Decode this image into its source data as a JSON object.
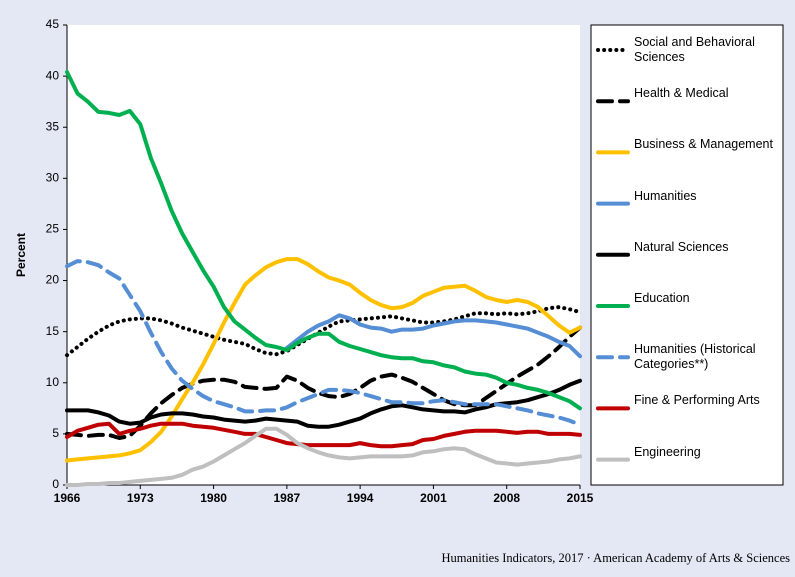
{
  "chart_data": {
    "type": "line",
    "y_label": "Percent",
    "source": "Humanities Indicators, 2017 · American Academy of Arts & Sciences",
    "x": [
      1966,
      1967,
      1968,
      1969,
      1970,
      1971,
      1972,
      1973,
      1974,
      1975,
      1976,
      1977,
      1978,
      1979,
      1980,
      1981,
      1982,
      1983,
      1984,
      1985,
      1986,
      1987,
      1988,
      1989,
      1990,
      1991,
      1992,
      1993,
      1994,
      1995,
      1996,
      1997,
      1998,
      1999,
      2000,
      2001,
      2002,
      2003,
      2004,
      2005,
      2006,
      2007,
      2008,
      2009,
      2010,
      2011,
      2012,
      2013,
      2014,
      2015
    ],
    "xlim": [
      1966,
      2015
    ],
    "xticks": [
      1966,
      1973,
      1980,
      1987,
      1994,
      2001,
      2008,
      2015
    ],
    "ylim": [
      0,
      45
    ],
    "yticks": [
      0,
      5,
      10,
      15,
      20,
      25,
      30,
      35,
      40,
      45
    ],
    "grid": false,
    "series": [
      {
        "name": "Social and Behavioral Sciences",
        "color": "#000000",
        "style": "dotted",
        "values": [
          12.7,
          13.5,
          14.3,
          15.0,
          15.6,
          16.0,
          16.2,
          16.3,
          16.3,
          16.1,
          15.8,
          15.4,
          15.1,
          14.8,
          14.5,
          14.2,
          14.0,
          13.8,
          13.3,
          12.9,
          12.8,
          13.1,
          13.7,
          14.3,
          14.9,
          15.5,
          16.0,
          16.1,
          16.2,
          16.3,
          16.4,
          16.5,
          16.3,
          16.1,
          15.9,
          15.9,
          16.0,
          16.2,
          16.5,
          16.8,
          16.8,
          16.7,
          16.8,
          16.7,
          16.8,
          17.0,
          17.3,
          17.4,
          17.2,
          16.9
        ]
      },
      {
        "name": "Health & Medical",
        "color": "#000000",
        "style": "dashed",
        "values": [
          5.0,
          4.9,
          4.8,
          4.9,
          4.9,
          4.6,
          4.8,
          5.8,
          7.0,
          8.0,
          8.8,
          9.5,
          9.9,
          10.2,
          10.3,
          10.3,
          10.1,
          9.6,
          9.5,
          9.4,
          9.5,
          10.6,
          10.2,
          9.5,
          9.0,
          8.7,
          8.6,
          8.9,
          9.5,
          10.2,
          10.6,
          10.8,
          10.5,
          10.1,
          9.5,
          8.9,
          8.3,
          7.9,
          7.8,
          7.8,
          8.5,
          9.2,
          9.9,
          10.6,
          11.2,
          11.8,
          12.6,
          13.5,
          14.5,
          15.4
        ]
      },
      {
        "name": "Business & Management",
        "color": "#ffc000",
        "style": "solid",
        "values": [
          2.4,
          2.5,
          2.6,
          2.7,
          2.8,
          2.9,
          3.1,
          3.4,
          4.2,
          5.2,
          6.7,
          8.4,
          10.0,
          11.8,
          13.8,
          15.9,
          17.8,
          19.6,
          20.5,
          21.3,
          21.8,
          22.1,
          22.1,
          21.6,
          20.9,
          20.3,
          20.0,
          19.6,
          18.8,
          18.1,
          17.6,
          17.3,
          17.4,
          17.8,
          18.5,
          18.9,
          19.3,
          19.4,
          19.5,
          19.0,
          18.4,
          18.1,
          17.9,
          18.1,
          17.9,
          17.4,
          16.5,
          15.6,
          14.9,
          15.4
        ]
      },
      {
        "name": "Humanities",
        "color": "#558ed5",
        "style": "solid",
        "values": [
          null,
          null,
          null,
          null,
          null,
          null,
          null,
          null,
          null,
          null,
          null,
          null,
          null,
          null,
          null,
          null,
          null,
          null,
          null,
          null,
          null,
          13.4,
          14.2,
          15.0,
          15.6,
          16.0,
          16.6,
          16.3,
          15.7,
          15.4,
          15.3,
          15.0,
          15.2,
          15.2,
          15.3,
          15.6,
          15.8,
          16.0,
          16.1,
          16.1,
          16.0,
          15.9,
          15.7,
          15.5,
          15.3,
          14.9,
          14.5,
          14.0,
          13.6,
          12.6
        ]
      },
      {
        "name": "Natural Sciences",
        "color": "#000000",
        "style": "solid",
        "values": [
          7.3,
          7.3,
          7.3,
          7.1,
          6.8,
          6.2,
          6.0,
          6.1,
          6.6,
          6.9,
          7.0,
          7.0,
          6.9,
          6.7,
          6.6,
          6.4,
          6.3,
          6.2,
          6.3,
          6.5,
          6.4,
          6.3,
          6.2,
          5.8,
          5.7,
          5.7,
          5.9,
          6.2,
          6.5,
          7.0,
          7.4,
          7.7,
          7.8,
          7.6,
          7.4,
          7.3,
          7.2,
          7.2,
          7.1,
          7.4,
          7.6,
          7.9,
          8.0,
          8.1,
          8.3,
          8.6,
          8.9,
          9.3,
          9.8,
          10.2
        ]
      },
      {
        "name": "Education",
        "color": "#00b050",
        "style": "solid",
        "values": [
          40.4,
          38.3,
          37.5,
          36.5,
          36.4,
          36.2,
          36.6,
          35.3,
          32.0,
          29.5,
          26.8,
          24.6,
          22.8,
          21.0,
          19.4,
          17.4,
          16.0,
          15.2,
          14.4,
          13.7,
          13.5,
          13.2,
          13.9,
          14.4,
          14.8,
          14.8,
          14.0,
          13.6,
          13.3,
          13.0,
          12.7,
          12.5,
          12.4,
          12.4,
          12.1,
          12.0,
          11.7,
          11.5,
          11.1,
          10.9,
          10.8,
          10.5,
          10.0,
          9.8,
          9.5,
          9.3,
          9.0,
          8.6,
          8.2,
          7.5
        ]
      },
      {
        "name": "Humanities (Historical Categories**)",
        "color": "#558ed5",
        "style": "dashed",
        "values": [
          21.4,
          21.9,
          21.8,
          21.5,
          20.8,
          20.2,
          18.6,
          17.0,
          14.9,
          13.0,
          11.4,
          10.2,
          9.4,
          8.7,
          8.2,
          7.9,
          7.6,
          7.2,
          7.2,
          7.3,
          7.3,
          7.6,
          8.1,
          8.5,
          8.9,
          9.3,
          9.3,
          9.2,
          9.0,
          8.7,
          8.4,
          8.1,
          8.1,
          8.0,
          8.0,
          8.2,
          8.3,
          8.1,
          7.9,
          7.9,
          7.9,
          7.9,
          7.7,
          7.5,
          7.3,
          7.0,
          6.8,
          6.6,
          6.3,
          5.9
        ]
      },
      {
        "name": "Fine & Performing Arts",
        "color": "#c00000",
        "style": "solid",
        "values": [
          4.7,
          5.3,
          5.6,
          5.9,
          6.0,
          5.0,
          5.3,
          5.5,
          5.8,
          6.0,
          6.0,
          6.0,
          5.8,
          5.7,
          5.6,
          5.4,
          5.2,
          5.0,
          5.0,
          4.7,
          4.4,
          4.1,
          4.0,
          3.9,
          3.9,
          3.9,
          3.9,
          3.9,
          4.1,
          3.9,
          3.8,
          3.8,
          3.9,
          4.0,
          4.4,
          4.5,
          4.8,
          5.0,
          5.2,
          5.3,
          5.3,
          5.3,
          5.2,
          5.1,
          5.2,
          5.2,
          5.0,
          5.0,
          5.0,
          4.9
        ]
      },
      {
        "name": "Engineering",
        "color": "#bfbfbf",
        "style": "solid",
        "values": [
          0.0,
          0.0,
          0.1,
          0.1,
          0.2,
          0.2,
          0.3,
          0.4,
          0.5,
          0.6,
          0.7,
          1.0,
          1.5,
          1.8,
          2.3,
          2.9,
          3.5,
          4.1,
          4.8,
          5.5,
          5.5,
          4.9,
          4.1,
          3.6,
          3.2,
          2.9,
          2.7,
          2.6,
          2.7,
          2.8,
          2.8,
          2.8,
          2.8,
          2.9,
          3.2,
          3.3,
          3.5,
          3.6,
          3.5,
          3.0,
          2.6,
          2.2,
          2.1,
          2.0,
          2.1,
          2.2,
          2.3,
          2.5,
          2.6,
          2.8
        ]
      }
    ]
  }
}
